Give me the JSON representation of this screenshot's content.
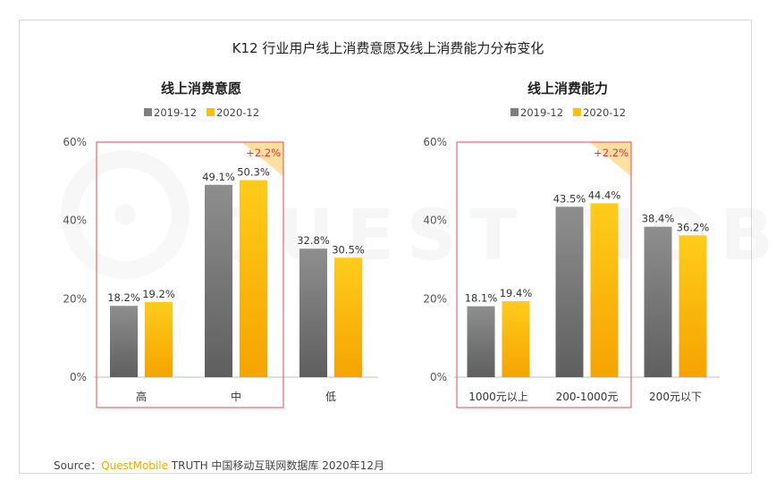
{
  "title": "K12 行业用户线上消费意愿及线上消费能力分布变化",
  "source": {
    "prefix": "Source：",
    "brand": "QuestMobile",
    "rest": " TRUTH 中国移动互联网数据库 2020年12月"
  },
  "watermark": "QUEST MOBILE",
  "colors": {
    "series_2019": "#7f7f7f",
    "series_2020": "#ffc000",
    "highlight_box": "#e84a4a",
    "diff_text": "#e63232",
    "diff_flag": "#ffe0a0"
  },
  "chart_data": [
    {
      "type": "bar",
      "title": "线上消费意愿",
      "categories": [
        "高",
        "中",
        "低"
      ],
      "series": [
        {
          "name": "2019-12",
          "values": [
            18.2,
            49.1,
            32.8
          ],
          "labels": [
            "18.2%",
            "49.1%",
            "32.8%"
          ]
        },
        {
          "name": "2020-12",
          "values": [
            19.2,
            50.3,
            30.5
          ],
          "labels": [
            "19.2%",
            "50.3%",
            "30.5%"
          ]
        }
      ],
      "ylim": [
        0,
        60
      ],
      "yticks": [
        "0%",
        "20%",
        "40%",
        "60%"
      ],
      "legend": "top",
      "highlight": {
        "categories": [
          "高",
          "中"
        ],
        "annotation": "+2.2%"
      }
    },
    {
      "type": "bar",
      "title": "线上消费能力",
      "categories": [
        "1000元以上",
        "200-1000元",
        "200元以下"
      ],
      "series": [
        {
          "name": "2019-12",
          "values": [
            18.1,
            43.5,
            38.4
          ],
          "labels": [
            "18.1%",
            "43.5%",
            "38.4%"
          ]
        },
        {
          "name": "2020-12",
          "values": [
            19.4,
            44.4,
            36.2
          ],
          "labels": [
            "19.4%",
            "44.4%",
            "36.2%"
          ]
        }
      ],
      "ylim": [
        0,
        60
      ],
      "yticks": [
        "0%",
        "20%",
        "40%",
        "60%"
      ],
      "legend": "top",
      "highlight": {
        "categories": [
          "1000元以上",
          "200-1000元"
        ],
        "annotation": "+2.2%"
      }
    }
  ]
}
